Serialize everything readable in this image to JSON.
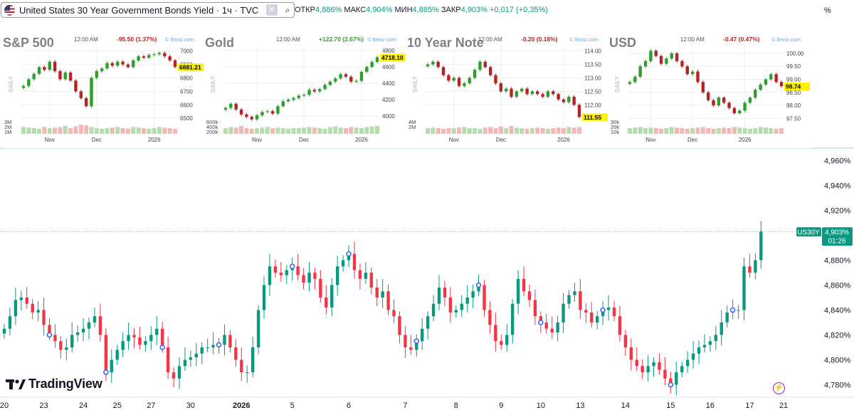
{
  "header": {
    "symbol_title": "United States 30 Year Government Bonds Yield · 1ч · TVC",
    "open_label": "ОТКР",
    "open_value": "4,886%",
    "high_label": "МАКС",
    "high_value": "4,904%",
    "low_label": "МИН",
    "low_value": "4,885%",
    "close_label": "ЗАКР",
    "close_value": "4,903%",
    "change": "+0,017 (+0,35%)",
    "unit": "%"
  },
  "brand": {
    "logo_text": "TradingView"
  },
  "colors": {
    "up": "#089981",
    "down": "#f23645",
    "accent": "#2962ff",
    "mini_up": "#2e9e2e",
    "mini_down": "#b52424"
  },
  "chart_data": [
    {
      "type": "line",
      "title": "United States 30 Year Government Bonds Yield",
      "series": [
        {
          "name": "US30Y",
          "values": [
            4.825,
            4.835,
            4.848,
            4.85,
            4.845,
            4.838,
            4.84,
            4.828,
            4.82,
            4.815,
            4.808,
            4.81,
            4.82,
            4.822,
            4.825,
            4.83,
            4.835,
            4.82,
            4.79,
            4.8,
            4.808,
            4.815,
            4.82,
            4.818,
            4.812,
            4.815,
            4.82,
            4.825,
            4.81,
            4.79,
            4.785,
            4.795,
            4.8,
            4.802,
            4.805,
            4.81,
            4.81,
            4.812,
            4.812,
            4.82,
            4.81,
            4.8,
            4.79,
            4.79,
            4.81,
            4.84,
            4.86,
            4.875,
            4.87,
            4.868,
            4.872,
            4.875,
            4.868,
            4.862,
            4.87,
            4.865,
            4.85,
            4.842,
            4.86,
            4.875,
            4.88,
            4.885,
            4.872,
            4.865,
            4.87,
            4.858,
            4.85,
            4.855,
            4.84,
            4.835,
            4.82,
            4.81,
            4.808,
            4.815,
            4.825,
            4.835,
            4.845,
            4.858,
            4.85,
            4.838,
            4.84,
            4.845,
            4.85,
            4.855,
            4.86,
            4.84,
            4.828,
            4.815,
            4.812,
            4.82,
            4.845,
            4.865,
            4.855,
            4.848,
            4.835,
            4.83,
            4.825,
            4.822,
            4.83,
            4.845,
            4.852,
            4.855,
            4.84,
            4.838,
            4.83,
            4.835,
            4.84,
            4.842,
            4.835,
            4.82,
            4.81,
            4.8,
            4.795,
            4.79,
            4.795,
            4.798,
            4.792,
            4.785,
            4.78,
            4.79,
            4.795,
            4.8,
            4.805,
            4.81,
            4.812,
            4.815,
            4.82,
            4.83,
            4.838,
            4.84,
            4.84,
            4.875,
            4.87,
            4.88,
            4.903
          ]
        }
      ],
      "y_ticks": [
        "4,960%",
        "4,940%",
        "4,920%",
        "4,880%",
        "4,860%",
        "4,840%",
        "4,820%",
        "4,800%",
        "4,780%"
      ],
      "y_tick_values": [
        4.96,
        4.94,
        4.92,
        4.88,
        4.86,
        4.84,
        4.82,
        4.8,
        4.78
      ],
      "ylim": [
        4.77,
        4.97
      ],
      "x_ticks": [
        "20",
        "23",
        "24",
        "25",
        "27",
        "30",
        "2026",
        "5",
        "6",
        "7",
        "8",
        "9",
        "10",
        "13",
        "14",
        "15",
        "16",
        "17",
        "21"
      ],
      "x_tick_index": [
        0,
        7,
        14,
        20,
        26,
        33,
        42,
        51,
        61,
        71,
        80,
        88,
        95,
        102,
        110,
        118,
        125,
        132,
        138
      ],
      "x_count": 140,
      "price_label": {
        "symbol": "US30Y",
        "value": "4,903%",
        "countdown": "01:26",
        "price": 4.903
      },
      "events_index": [
        8,
        18,
        28,
        38,
        51,
        61,
        73,
        84,
        95,
        106,
        118,
        129
      ]
    },
    {
      "type": "bar",
      "title": "S&P 500",
      "side_label": "DAILY",
      "time": "12:00 AM",
      "change": "-95.50 (1.37%)",
      "change_dir": "down",
      "source": "© finviz.com",
      "last_price": "6881.21",
      "y_ticks": [
        "7000",
        "6900",
        "6800",
        "6700",
        "6600",
        "6500"
      ],
      "y_tick_values": [
        7000,
        6900,
        6800,
        6700,
        6600,
        6500
      ],
      "ylim": [
        6480,
        7040
      ],
      "x_ticks": [
        "Nov",
        "Dec",
        "2026"
      ],
      "x_tick_index": [
        5,
        14,
        25
      ],
      "vol_ticks": [
        "3M",
        "2M",
        "1M"
      ],
      "values": [
        6740,
        6790,
        6830,
        6880,
        6860,
        6920,
        6850,
        6790,
        6840,
        6780,
        6700,
        6650,
        6590,
        6800,
        6850,
        6870,
        6910,
        6890,
        6920,
        6900,
        6880,
        6930,
        6960,
        6950,
        6970,
        6975,
        6985,
        6960,
        6930,
        6881
      ],
      "volume": [
        0.6,
        0.55,
        0.5,
        0.45,
        0.6,
        0.5,
        0.55,
        0.6,
        0.7,
        0.5,
        0.65,
        0.8,
        0.75,
        0.6,
        0.5,
        0.45,
        0.5,
        0.55,
        0.6,
        0.5,
        0.45,
        0.6,
        0.55,
        0.5,
        0.45,
        0.5,
        0.6,
        0.55,
        0.5,
        0.45
      ]
    },
    {
      "type": "bar",
      "title": "Gold",
      "side_label": "DAILY",
      "time": "12:00 AM",
      "change": "+122.70 (2.67%)",
      "change_dir": "up",
      "source": "© finviz.com",
      "last_price": "4718.10",
      "y_ticks": [
        "4800",
        "4600",
        "4400",
        "4200",
        "4000"
      ],
      "y_tick_values": [
        4800,
        4600,
        4400,
        4200,
        4000
      ],
      "ylim": [
        3940,
        4860
      ],
      "x_ticks": [
        "Nov",
        "Dec",
        "2026"
      ],
      "x_tick_index": [
        6,
        15,
        26
      ],
      "vol_ticks": [
        "600k",
        "400k",
        "200k"
      ],
      "values": [
        4100,
        4150,
        4080,
        4020,
        3990,
        3960,
        4010,
        4050,
        4060,
        4030,
        4120,
        4180,
        4200,
        4220,
        4250,
        4260,
        4320,
        4300,
        4330,
        4380,
        4420,
        4460,
        4510,
        4480,
        4420,
        4430,
        4540,
        4600,
        4660,
        4718
      ],
      "volume": [
        0.5,
        0.6,
        0.55,
        0.7,
        0.5,
        0.45,
        0.5,
        0.55,
        0.6,
        0.5,
        0.55,
        0.5,
        0.45,
        0.5,
        0.5,
        0.55,
        0.6,
        0.55,
        0.5,
        0.45,
        0.6,
        0.65,
        0.55,
        0.5,
        0.6,
        0.55,
        0.5,
        0.6,
        0.65,
        0.7
      ]
    },
    {
      "type": "bar",
      "title": "10 Year Note",
      "side_label": "DAILY",
      "time": "12:00 AM",
      "change": "-0.20 (0.18%)",
      "change_dir": "down",
      "source": "© finviz.com",
      "last_price": "111.55",
      "y_ticks": [
        "114.00",
        "113.50",
        "113.00",
        "112.50",
        "112.00"
      ],
      "y_tick_values": [
        114.0,
        113.5,
        113.0,
        112.5,
        112.0
      ],
      "ylim": [
        111.4,
        114.2
      ],
      "x_ticks": [
        "Nov",
        "Dec",
        "2026"
      ],
      "x_tick_index": [
        5,
        14,
        26
      ],
      "vol_ticks": [
        "4M",
        "2M"
      ],
      "values": [
        113.5,
        113.6,
        113.4,
        113.1,
        112.9,
        113.0,
        112.7,
        112.8,
        113.0,
        113.3,
        113.6,
        113.4,
        113.1,
        112.8,
        112.5,
        112.6,
        112.3,
        112.5,
        112.6,
        112.4,
        112.5,
        112.4,
        112.3,
        112.5,
        112.4,
        112.2,
        112.1,
        112.3,
        112.0,
        111.55
      ],
      "volume": [
        0.5,
        0.55,
        0.5,
        0.45,
        0.5,
        0.5,
        0.55,
        0.6,
        0.5,
        0.5,
        0.45,
        0.55,
        0.6,
        0.5,
        0.65,
        0.5,
        0.7,
        0.55,
        0.5,
        0.45,
        0.5,
        0.55,
        0.5,
        0.45,
        0.5,
        0.55,
        0.5,
        0.6,
        0.55,
        0.6
      ]
    },
    {
      "type": "bar",
      "title": "USD",
      "side_label": "DAILY",
      "time": "12:00 AM",
      "change": "-0.47 (0.47%)",
      "change_dir": "down",
      "source": "© finviz.com",
      "last_price": "98.74",
      "y_ticks": [
        "100.00",
        "99.50",
        "99.00",
        "98.50",
        "98.00",
        "97.50"
      ],
      "y_tick_values": [
        100.0,
        99.5,
        99.0,
        98.5,
        98.0,
        97.5
      ],
      "ylim": [
        97.4,
        100.3
      ],
      "x_ticks": [
        "Nov",
        "Dec",
        "2026"
      ],
      "x_tick_index": [
        4,
        12,
        22
      ],
      "vol_ticks": [
        "30k",
        "20k",
        "10k"
      ],
      "values": [
        98.9,
        99.1,
        99.5,
        99.7,
        100.1,
        99.9,
        99.6,
        99.8,
        100.0,
        99.7,
        99.5,
        99.2,
        99.3,
        98.9,
        98.5,
        98.2,
        98.0,
        98.3,
        98.1,
        97.9,
        97.7,
        97.8,
        98.1,
        98.3,
        98.6,
        98.8,
        99.0,
        99.2,
        98.9,
        98.74
      ],
      "volume": [
        0.5,
        0.55,
        0.6,
        0.5,
        0.55,
        0.5,
        0.45,
        0.5,
        0.6,
        0.55,
        0.5,
        0.45,
        0.5,
        0.55,
        0.6,
        0.5,
        0.45,
        0.5,
        0.55,
        0.5,
        0.6,
        0.55,
        0.5,
        0.45,
        0.5,
        0.6,
        0.55,
        0.5,
        0.45,
        0.5
      ]
    }
  ]
}
